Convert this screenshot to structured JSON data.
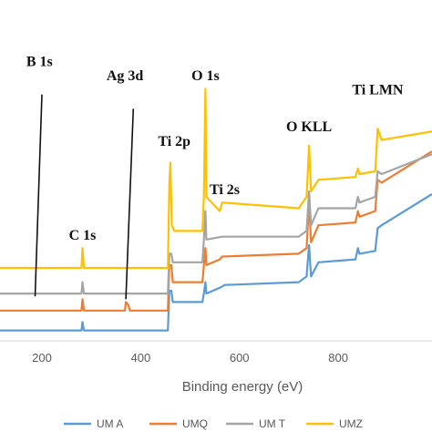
{
  "chart_data": {
    "type": "line",
    "xlabel": "Binding energy (eV)",
    "xlim": [
      115,
      990
    ],
    "ylim": [
      0,
      100
    ],
    "x_ticks": [
      200,
      400,
      600,
      800
    ],
    "grid": false,
    "legend_position": "bottom",
    "series": [
      {
        "name": "UM A",
        "color": "#5B9BD5",
        "points": [
          [
            115,
            3
          ],
          [
            280,
            3
          ],
          [
            282,
            6
          ],
          [
            285,
            3
          ],
          [
            455,
            3
          ],
          [
            458,
            17
          ],
          [
            462,
            17
          ],
          [
            465,
            13
          ],
          [
            525,
            13
          ],
          [
            528,
            16
          ],
          [
            531,
            20
          ],
          [
            533,
            16
          ],
          [
            560,
            18
          ],
          [
            570,
            19
          ],
          [
            720,
            20
          ],
          [
            736,
            22
          ],
          [
            741,
            33
          ],
          [
            745,
            22
          ],
          [
            760,
            27
          ],
          [
            835,
            28
          ],
          [
            840,
            32
          ],
          [
            843,
            30
          ],
          [
            875,
            31
          ],
          [
            880,
            39
          ],
          [
            888,
            40
          ],
          [
            990,
            51
          ]
        ]
      },
      {
        "name": "UMQ",
        "color": "#ED7D31",
        "points": [
          [
            115,
            10
          ],
          [
            280,
            10
          ],
          [
            282,
            14
          ],
          [
            285,
            10
          ],
          [
            368,
            10
          ],
          [
            370,
            13
          ],
          [
            375,
            12
          ],
          [
            378,
            10
          ],
          [
            455,
            10
          ],
          [
            458,
            26
          ],
          [
            462,
            26
          ],
          [
            465,
            20
          ],
          [
            525,
            20
          ],
          [
            528,
            26
          ],
          [
            531,
            32
          ],
          [
            533,
            26
          ],
          [
            560,
            28
          ],
          [
            565,
            29
          ],
          [
            720,
            30
          ],
          [
            736,
            32
          ],
          [
            741,
            48
          ],
          [
            745,
            34
          ],
          [
            760,
            40
          ],
          [
            835,
            41
          ],
          [
            840,
            45
          ],
          [
            843,
            43
          ],
          [
            875,
            45
          ],
          [
            880,
            56
          ],
          [
            888,
            55
          ],
          [
            990,
            66
          ]
        ]
      },
      {
        "name": "UM T",
        "color": "#A5A5A5",
        "points": [
          [
            115,
            16
          ],
          [
            280,
            16
          ],
          [
            282,
            20
          ],
          [
            285,
            16
          ],
          [
            455,
            16
          ],
          [
            458,
            30
          ],
          [
            462,
            30
          ],
          [
            465,
            27
          ],
          [
            525,
            27
          ],
          [
            528,
            35
          ],
          [
            531,
            45
          ],
          [
            533,
            35
          ],
          [
            565,
            36
          ],
          [
            720,
            36
          ],
          [
            736,
            38
          ],
          [
            741,
            52
          ],
          [
            745,
            40
          ],
          [
            760,
            46
          ],
          [
            835,
            46
          ],
          [
            840,
            50
          ],
          [
            843,
            48
          ],
          [
            875,
            50
          ],
          [
            880,
            59
          ],
          [
            888,
            58
          ],
          [
            990,
            65
          ]
        ]
      },
      {
        "name": "UMZ",
        "color": "#FFC000",
        "points": [
          [
            115,
            25
          ],
          [
            280,
            25
          ],
          [
            282,
            32
          ],
          [
            285,
            25
          ],
          [
            455,
            25
          ],
          [
            458,
            55
          ],
          [
            460,
            62
          ],
          [
            463,
            40
          ],
          [
            468,
            38
          ],
          [
            525,
            38
          ],
          [
            528,
            50
          ],
          [
            531,
            88
          ],
          [
            533,
            50
          ],
          [
            560,
            45
          ],
          [
            565,
            48
          ],
          [
            720,
            46
          ],
          [
            736,
            50
          ],
          [
            741,
            68
          ],
          [
            745,
            52
          ],
          [
            760,
            56
          ],
          [
            835,
            57
          ],
          [
            840,
            60
          ],
          [
            843,
            58
          ],
          [
            875,
            59
          ],
          [
            880,
            74
          ],
          [
            888,
            70
          ],
          [
            990,
            73
          ]
        ]
      }
    ],
    "annotations": [
      {
        "text": "B 1s",
        "x": 195,
        "y": 96
      },
      {
        "text": "Ag 3d",
        "x": 368,
        "y": 91
      },
      {
        "text": "O 1s",
        "x": 531,
        "y": 91
      },
      {
        "text": "Ti 2p",
        "x": 468,
        "y": 68
      },
      {
        "text": "Ti 2s",
        "x": 570,
        "y": 51
      },
      {
        "text": "C 1s",
        "x": 282,
        "y": 35
      },
      {
        "text": "O KLL",
        "x": 741,
        "y": 73
      },
      {
        "text": "Ti LMN",
        "x": 880,
        "y": 86
      }
    ],
    "leader_lines": [
      {
        "x_top": 200,
        "y_top": 86,
        "x_bottom": 186,
        "y_bottom": 15
      },
      {
        "x_top": 385,
        "y_top": 81,
        "x_bottom": 370,
        "y_bottom": 14
      }
    ]
  }
}
